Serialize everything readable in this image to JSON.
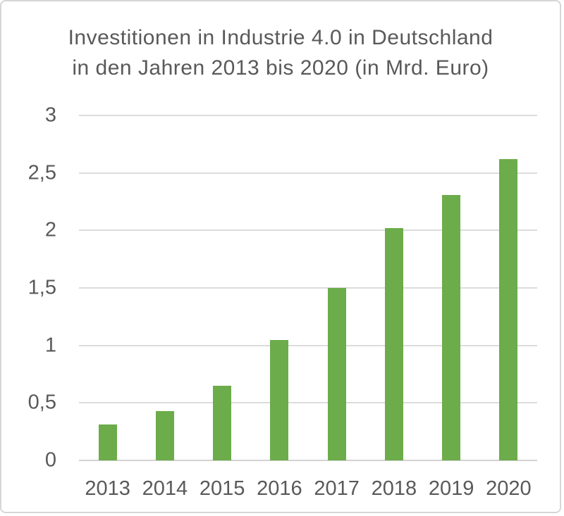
{
  "page": {
    "background_color": "#ffffff",
    "border_color": "#d6d6d6",
    "text_color": "#595959"
  },
  "chart_data": {
    "type": "bar",
    "title_lines": [
      "Investitionen in Industrie 4.0 in Deutschland",
      "in den Jahren 2013 bis 2020 (in Mrd. Euro)"
    ],
    "categories": [
      "2013",
      "2014",
      "2015",
      "2016",
      "2017",
      "2018",
      "2019",
      "2020"
    ],
    "values": [
      0.31,
      0.43,
      0.65,
      1.05,
      1.5,
      2.02,
      2.31,
      2.62
    ],
    "unit": "Mrd. Euro",
    "xlabel": "",
    "ylabel": "",
    "ylim": [
      0,
      3
    ],
    "yticks": [
      {
        "value": 0,
        "label": "0"
      },
      {
        "value": 0.5,
        "label": "0,5"
      },
      {
        "value": 1,
        "label": "1"
      },
      {
        "value": 1.5,
        "label": "1,5"
      },
      {
        "value": 2,
        "label": "2"
      },
      {
        "value": 2.5,
        "label": "2,5"
      },
      {
        "value": 3,
        "label": "3"
      }
    ],
    "decimal_separator": ",",
    "grid": true,
    "legend_position": "none",
    "bar_color": "#6cac4a",
    "gridline_color": "#dcdcdc",
    "axis_line_color": "#d2d2d2"
  }
}
